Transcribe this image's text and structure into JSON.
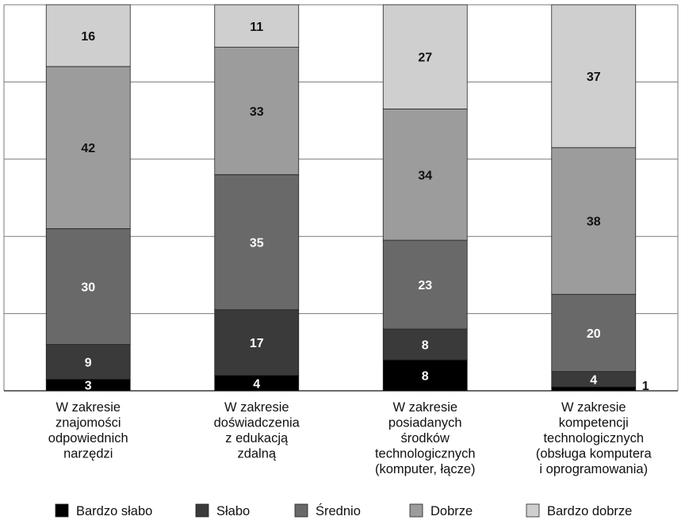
{
  "chart_data": {
    "type": "bar",
    "stacked": true,
    "orientation": "vertical",
    "percent_scale": true,
    "ylim": [
      0,
      100
    ],
    "grid": true,
    "legend_position": "bottom",
    "categories": [
      [
        "W zakresie",
        "znajomości",
        "odpowiednich",
        "narzędzi"
      ],
      [
        "W zakresie",
        "doświadczenia",
        "z edukacją",
        "zdalną"
      ],
      [
        "W zakresie",
        "posiadanych",
        "środków",
        "technologicznych",
        "(komputer, łącze)"
      ],
      [
        "W zakresie",
        "kompetencji",
        "technologicznych",
        "(obsługa komputera",
        "i oprogramowania)"
      ]
    ],
    "series": [
      {
        "name": "Bardzo słabo",
        "color": "#000000",
        "label_color": "#ffffff",
        "values": [
          3,
          4,
          8,
          1
        ]
      },
      {
        "name": "Słabo",
        "color": "#3a3a3a",
        "label_color": "#ffffff",
        "values": [
          9,
          17,
          8,
          4
        ]
      },
      {
        "name": "Średnio",
        "color": "#696969",
        "label_color": "#ffffff",
        "values": [
          30,
          35,
          23,
          20
        ]
      },
      {
        "name": "Dobrze",
        "color": "#9c9c9c",
        "label_color": "#111111",
        "values": [
          42,
          33,
          34,
          38
        ]
      },
      {
        "name": "Bardzo dobrze",
        "color": "#cfcfcf",
        "label_color": "#111111",
        "values": [
          16,
          11,
          27,
          37
        ]
      }
    ]
  }
}
